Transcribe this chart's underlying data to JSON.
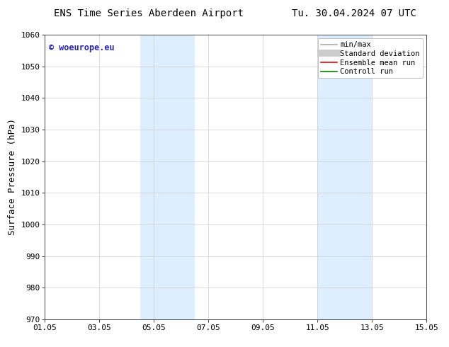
{
  "title_left": "ENS Time Series Aberdeen Airport",
  "title_right": "Tu. 30.04.2024 07 UTC",
  "ylabel": "Surface Pressure (hPa)",
  "ylim": [
    970,
    1060
  ],
  "yticks": [
    970,
    980,
    990,
    1000,
    1010,
    1020,
    1030,
    1040,
    1050,
    1060
  ],
  "xtick_labels": [
    "01.05",
    "03.05",
    "05.05",
    "07.05",
    "09.05",
    "11.05",
    "13.05",
    "15.05"
  ],
  "xtick_positions": [
    0,
    2,
    4,
    6,
    8,
    10,
    12,
    14
  ],
  "xlim": [
    0,
    14
  ],
  "shaded_bands": [
    {
      "x_start": 3.5,
      "x_end": 5.5
    },
    {
      "x_start": 10.0,
      "x_end": 12.0
    }
  ],
  "shaded_color": "#ddeeff",
  "watermark_text": "© woeurope.eu",
  "watermark_color": "#2222bb",
  "legend_items": [
    {
      "label": "min/max",
      "color": "#aaaaaa",
      "lw": 1.2,
      "style": "solid"
    },
    {
      "label": "Standard deviation",
      "color": "#cccccc",
      "lw": 7,
      "style": "solid"
    },
    {
      "label": "Ensemble mean run",
      "color": "#ff0000",
      "lw": 1.2,
      "style": "solid"
    },
    {
      "label": "Controll run",
      "color": "#008000",
      "lw": 1.2,
      "style": "solid"
    }
  ],
  "bg_color": "#ffffff",
  "grid_color": "#cccccc",
  "tick_label_fontsize": 8,
  "axis_label_fontsize": 9,
  "title_fontsize": 10
}
